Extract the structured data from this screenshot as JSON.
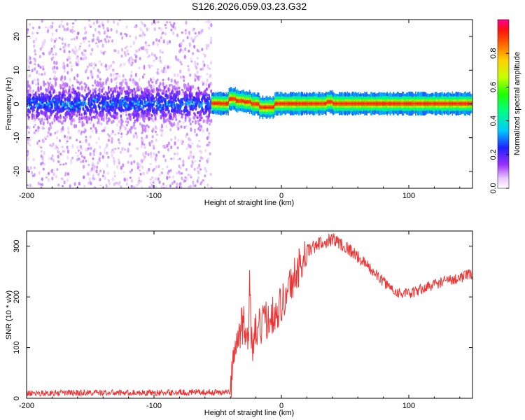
{
  "title": "S126.2026.059.03.23.G32",
  "chart_data": [
    {
      "type": "heatmap",
      "xlabel": "Height of straight line (km)",
      "ylabel": "Frequency (Hz)",
      "xlim": [
        -200,
        150
      ],
      "ylim": [
        -25,
        25
      ],
      "xticks": [
        "-200",
        "-100",
        "0",
        "100"
      ],
      "xtick_values": [
        -200,
        -100,
        0,
        100
      ],
      "yticks": [
        "-20",
        "-10",
        "0",
        "10",
        "20"
      ],
      "ytick_values": [
        -20,
        -10,
        0,
        10,
        20
      ],
      "colorbar": {
        "label": "Normalized spectral amplitude",
        "range": [
          0,
          1
        ],
        "ticks": [
          "0.0",
          "0.2",
          "0.4",
          "0.6",
          "0.8"
        ],
        "tick_values": [
          0.0,
          0.2,
          0.4,
          0.6,
          0.8
        ]
      },
      "noise_region_x": [
        -200,
        -55
      ],
      "tone_track": [
        {
          "x": -55,
          "y": 0.2
        },
        {
          "x": -48,
          "y": 0.1
        },
        {
          "x": -42,
          "y": 1.5
        },
        {
          "x": -36,
          "y": 0.9
        },
        {
          "x": -30,
          "y": 0.6
        },
        {
          "x": -24,
          "y": 0.0
        },
        {
          "x": -18,
          "y": -1.0
        },
        {
          "x": -10,
          "y": -1.0
        },
        {
          "x": -6,
          "y": 0.1
        },
        {
          "x": 30,
          "y": 0.1
        },
        {
          "x": 35,
          "y": 0.6
        },
        {
          "x": 40,
          "y": 0.1
        },
        {
          "x": 150,
          "y": 0.1
        }
      ]
    },
    {
      "type": "line",
      "xlabel": "Height of straight line (km)",
      "ylabel": "SNR (10 * v/v)",
      "xlim": [
        -200,
        150
      ],
      "ylim": [
        0,
        330
      ],
      "xticks": [
        "-200",
        "-100",
        "0",
        "100"
      ],
      "xtick_values": [
        -200,
        -100,
        0,
        100
      ],
      "yticks": [
        "0",
        "100",
        "200",
        "300"
      ],
      "ytick_values": [
        0,
        100,
        200,
        300
      ],
      "color": "#ee3333",
      "series": [
        {
          "x": [
            -200,
            -150,
            -100,
            -60,
            -40,
            -39,
            -35,
            -30,
            -28,
            -26,
            -25,
            -23,
            -20,
            -10,
            0,
            10,
            20,
            30,
            40,
            50,
            60,
            70,
            80,
            90,
            100,
            110,
            120,
            130,
            140,
            150
          ],
          "values": [
            10,
            11,
            11,
            12,
            12,
            55,
            110,
            150,
            140,
            110,
            220,
            90,
            130,
            160,
            185,
            240,
            290,
            305,
            315,
            300,
            280,
            255,
            230,
            210,
            205,
            215,
            225,
            232,
            238,
            245
          ]
        }
      ]
    }
  ]
}
